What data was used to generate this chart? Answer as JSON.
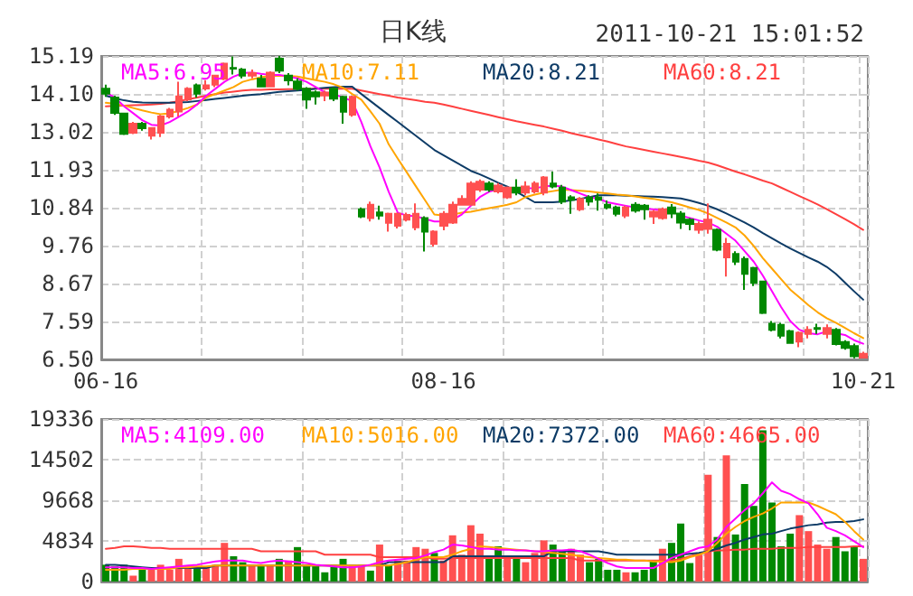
{
  "chart_data": [
    {
      "type": "candlestick",
      "title": "日K线",
      "annotations": [
        "2011-10-21 15:01:52"
      ],
      "categories": [
        "06-16",
        null,
        null,
        null,
        null,
        null,
        null,
        null,
        null,
        null,
        null,
        null,
        null,
        null,
        null,
        null,
        null,
        null,
        null,
        null,
        null,
        null,
        null,
        null,
        null,
        null,
        null,
        null,
        null,
        null,
        null,
        null,
        null,
        null,
        null,
        null,
        null,
        "08-16",
        null,
        null,
        null,
        null,
        null,
        null,
        null,
        null,
        null,
        null,
        null,
        null,
        null,
        null,
        null,
        null,
        null,
        null,
        null,
        null,
        null,
        null,
        null,
        null,
        null,
        null,
        null,
        null,
        null,
        null,
        null,
        null,
        null,
        null,
        null,
        null,
        null,
        null,
        null,
        null,
        null,
        null,
        null,
        null,
        null,
        "10-21"
      ],
      "ohlc": [
        [
          14.25,
          14.37,
          14.02,
          14.11
        ],
        [
          14.0,
          14.05,
          13.5,
          13.56
        ],
        [
          13.54,
          13.56,
          12.93,
          12.96
        ],
        [
          12.99,
          13.3,
          12.95,
          13.25
        ],
        [
          13.25,
          13.3,
          13.05,
          13.12
        ],
        [
          12.91,
          13.15,
          12.8,
          13.13
        ],
        [
          12.99,
          13.5,
          12.87,
          13.46
        ],
        [
          13.46,
          13.7,
          13.4,
          13.65
        ],
        [
          13.6,
          14.45,
          13.46,
          14.03
        ],
        [
          13.94,
          14.3,
          13.9,
          14.25
        ],
        [
          14.35,
          14.4,
          14.0,
          14.11
        ],
        [
          14.26,
          14.5,
          14.2,
          14.35
        ],
        [
          14.37,
          14.65,
          14.3,
          14.63
        ],
        [
          14.54,
          15.0,
          14.5,
          14.97
        ],
        [
          14.85,
          15.18,
          14.66,
          14.83
        ],
        [
          14.8,
          14.85,
          14.55,
          14.63
        ],
        [
          14.63,
          14.8,
          14.55,
          14.7
        ],
        [
          14.54,
          14.65,
          14.3,
          14.32
        ],
        [
          14.32,
          14.75,
          14.3,
          14.71
        ],
        [
          15.11,
          15.19,
          14.7,
          14.77
        ],
        [
          14.63,
          14.7,
          14.35,
          14.49
        ],
        [
          14.46,
          14.55,
          14.2,
          14.25
        ],
        [
          14.25,
          14.3,
          13.68,
          13.94
        ],
        [
          14.15,
          14.2,
          13.8,
          14.03
        ],
        [
          14.06,
          14.2,
          13.9,
          14.14
        ],
        [
          14.25,
          14.3,
          13.9,
          13.97
        ],
        [
          14.02,
          14.05,
          13.25,
          13.59
        ],
        [
          13.51,
          14.05,
          13.45,
          14.02
        ],
        [
          10.8,
          10.85,
          10.55,
          10.59
        ],
        [
          10.55,
          11.02,
          10.45,
          10.93
        ],
        [
          10.71,
          10.9,
          10.5,
          10.62
        ],
        [
          10.41,
          10.7,
          10.16,
          10.67
        ],
        [
          10.33,
          10.7,
          10.25,
          10.67
        ],
        [
          10.5,
          10.7,
          10.45,
          10.64
        ],
        [
          10.28,
          10.97,
          10.2,
          10.67
        ],
        [
          10.55,
          10.6,
          9.59,
          10.16
        ],
        [
          9.81,
          10.2,
          9.73,
          10.16
        ],
        [
          10.33,
          10.75,
          10.2,
          10.67
        ],
        [
          10.42,
          11.02,
          10.38,
          10.93
        ],
        [
          10.93,
          11.2,
          10.9,
          11.1
        ],
        [
          10.93,
          11.6,
          10.9,
          11.54
        ],
        [
          11.36,
          11.65,
          11.3,
          11.59
        ],
        [
          11.54,
          11.6,
          11.3,
          11.36
        ],
        [
          11.31,
          11.55,
          11.25,
          11.48
        ],
        [
          11.14,
          11.45,
          11.1,
          11.42
        ],
        [
          11.42,
          11.66,
          11.2,
          11.28
        ],
        [
          11.28,
          11.6,
          11.2,
          11.45
        ],
        [
          11.31,
          11.6,
          11.25,
          11.54
        ],
        [
          11.28,
          11.75,
          11.2,
          11.71
        ],
        [
          11.54,
          11.88,
          11.4,
          11.45
        ],
        [
          11.42,
          11.5,
          10.95,
          11.02
        ],
        [
          11.14,
          11.2,
          10.67,
          11.07
        ],
        [
          10.8,
          11.15,
          10.75,
          11.1
        ],
        [
          11.14,
          11.2,
          10.9,
          11.02
        ],
        [
          11.14,
          11.25,
          10.76,
          11.07
        ],
        [
          10.93,
          11.05,
          10.8,
          10.85
        ],
        [
          10.85,
          10.9,
          10.6,
          10.67
        ],
        [
          10.62,
          10.9,
          10.55,
          10.85
        ],
        [
          10.93,
          11.0,
          10.7,
          10.76
        ],
        [
          10.9,
          10.95,
          10.5,
          10.8
        ],
        [
          10.59,
          10.78,
          10.38,
          10.73
        ],
        [
          10.55,
          10.85,
          10.5,
          10.8
        ],
        [
          10.85,
          10.95,
          10.55,
          10.68
        ],
        [
          10.68,
          10.75,
          10.24,
          10.42
        ],
        [
          10.5,
          10.55,
          10.2,
          10.38
        ],
        [
          10.21,
          10.45,
          10.1,
          10.38
        ],
        [
          10.24,
          10.97,
          10.1,
          10.5
        ],
        [
          10.21,
          10.25,
          9.6,
          9.64
        ],
        [
          9.42,
          9.98,
          8.87,
          9.81
        ],
        [
          9.52,
          9.6,
          9.2,
          9.3
        ],
        [
          9.38,
          9.45,
          8.49,
          8.95
        ],
        [
          9.12,
          9.15,
          8.6,
          8.69
        ],
        [
          8.73,
          8.75,
          7.8,
          7.83
        ],
        [
          7.52,
          7.6,
          7.3,
          7.35
        ],
        [
          7.49,
          7.55,
          7.1,
          7.18
        ],
        [
          7.31,
          7.35,
          6.95,
          6.97
        ],
        [
          7.01,
          7.3,
          6.85,
          7.26
        ],
        [
          7.23,
          7.45,
          7.1,
          7.35
        ],
        [
          7.4,
          7.52,
          7.23,
          7.37
        ],
        [
          7.23,
          7.5,
          7.1,
          7.4
        ],
        [
          7.35,
          7.4,
          6.9,
          6.94
        ],
        [
          7.0,
          7.05,
          6.78,
          6.83
        ],
        [
          6.88,
          6.95,
          6.53,
          6.59
        ],
        [
          6.55,
          6.72,
          6.53,
          6.66
        ]
      ],
      "colors": [
        "#008800",
        "#008800",
        "#008800",
        "#ff5050",
        "#008800",
        "#ff5050",
        "#ff5050",
        "#ff5050",
        "#ff5050",
        "#ff5050",
        "#008800",
        "#ff5050",
        "#ff5050",
        "#ff5050",
        "#008800",
        "#008800",
        "#ff5050",
        "#008800",
        "#ff5050",
        "#008800",
        "#008800",
        "#008800",
        "#008800",
        "#008800",
        "#ff5050",
        "#008800",
        "#008800",
        "#ff5050",
        "#008800",
        "#ff5050",
        "#008800",
        "#ff5050",
        "#ff5050",
        "#ff5050",
        "#ff5050",
        "#008800",
        "#ff5050",
        "#ff5050",
        "#ff5050",
        "#ff5050",
        "#ff5050",
        "#ff5050",
        "#008800",
        "#ff5050",
        "#ff5050",
        "#008800",
        "#ff5050",
        "#ff5050",
        "#ff5050",
        "#008800",
        "#008800",
        "#008800",
        "#ff5050",
        "#008800",
        "#008800",
        "#008800",
        "#008800",
        "#ff5050",
        "#008800",
        "#008800",
        "#ff5050",
        "#ff5050",
        "#008800",
        "#008800",
        "#008800",
        "#ff5050",
        "#ff5050",
        "#008800",
        "#ff5050",
        "#008800",
        "#008800",
        "#008800",
        "#008800",
        "#008800",
        "#008800",
        "#008800",
        "#ff5050",
        "#ff5050",
        "#008800",
        "#ff5050",
        "#008800",
        "#008800",
        "#008800",
        "#ff5050"
      ],
      "series": [
        {
          "type": "line",
          "name": "MA5:6.95",
          "color": "#ff00ff",
          "values": [
            14.15,
            14.0,
            13.75,
            13.55,
            13.35,
            13.22,
            13.2,
            13.3,
            13.45,
            13.6,
            13.8,
            14.05,
            14.25,
            14.45,
            14.6,
            14.7,
            14.72,
            14.68,
            14.65,
            14.65,
            14.6,
            14.55,
            14.45,
            14.3,
            14.15,
            14.1,
            14.0,
            13.9,
            13.3,
            12.6,
            12.0,
            11.3,
            10.7,
            10.62,
            10.6,
            10.52,
            10.45,
            10.45,
            10.5,
            10.65,
            10.9,
            11.15,
            11.3,
            11.38,
            null,
            null,
            11.4,
            11.4,
            11.45,
            11.48,
            11.45,
            11.35,
            11.25,
            11.15,
            11.1,
            11.0,
            10.95,
            10.9,
            10.85,
            10.82,
            10.8,
            10.77,
            null,
            10.62,
            10.55,
            10.48,
            10.42,
            10.3,
            10.1,
            9.9,
            9.6,
            9.3,
            8.9,
            8.45,
            8.0,
            7.6,
            7.35,
            7.25,
            7.22,
            7.3,
            7.25,
            7.2,
            7.05,
            6.95
          ]
        },
        {
          "type": "line",
          "name": "MA10:7.11",
          "color": "#ffa500",
          "values": [
            13.85,
            13.82,
            13.77,
            13.7,
            13.63,
            13.57,
            13.52,
            13.55,
            13.62,
            13.7,
            13.8,
            14.0,
            14.1,
            14.2,
            14.3,
            14.45,
            14.52,
            14.58,
            14.62,
            14.63,
            14.62,
            14.6,
            14.55,
            14.5,
            14.45,
            14.38,
            14.28,
            14.1,
            13.94,
            13.6,
            13.25,
            12.66,
            12.25,
            11.85,
            11.45,
            11.05,
            10.65,
            10.62,
            10.65,
            10.7,
            10.73,
            10.78,
            10.83,
            10.88,
            10.93,
            11.0,
            11.15,
            11.22,
            11.28,
            11.32,
            11.36,
            11.35,
            11.33,
            11.31,
            11.28,
            11.25,
            11.22,
            11.2,
            11.17,
            11.13,
            11.1,
            11.05,
            11.0,
            10.93,
            10.85,
            10.78,
            10.68,
            10.55,
            10.42,
            10.28,
            10.05,
            9.75,
            9.4,
            9.1,
            8.8,
            8.5,
            8.28,
            8.05,
            7.85,
            7.68,
            7.55,
            7.4,
            7.25,
            7.11
          ]
        },
        {
          "type": "line",
          "name": "MA20:8.21",
          "color": "#0d3b66",
          "values": [
            14.05,
            13.98,
            13.92,
            13.88,
            13.86,
            13.85,
            13.85,
            13.85,
            13.86,
            13.87,
            13.9,
            13.93,
            13.96,
            13.99,
            14.02,
            14.05,
            14.08,
            14.1,
            14.13,
            14.16,
            14.18,
            14.2,
            14.22,
            14.25,
            14.28,
            14.3,
            14.31,
            14.31,
            14.1,
            13.9,
            13.7,
            13.5,
            13.3,
            13.1,
            12.9,
            12.7,
            12.5,
            12.35,
            12.2,
            12.05,
            11.9,
            11.8,
            11.68,
            11.56,
            11.45,
            11.3,
            11.15,
            11.0,
            11.0,
            11.0,
            11.02,
            11.06,
            11.1,
            11.15,
            11.2,
            11.2,
            11.2,
            11.19,
            11.18,
            11.17,
            11.16,
            11.15,
            11.13,
            11.11,
            11.05,
            10.98,
            10.9,
            10.8,
            10.68,
            10.55,
            10.42,
            10.28,
            10.12,
            9.97,
            9.82,
            9.68,
            9.55,
            9.42,
            9.3,
            9.15,
            8.95,
            8.7,
            8.45,
            8.21
          ]
        },
        {
          "type": "line",
          "name": "MA60:8.21",
          "color": "#ff4040",
          "values": [
            13.75,
            13.76,
            13.77,
            13.78,
            13.79,
            13.8,
            13.82,
            13.85,
            13.9,
            13.95,
            14.0,
            14.05,
            14.1,
            14.14,
            14.17,
            14.2,
            14.22,
            14.22,
            14.23,
            14.23,
            14.24,
            14.24,
            14.25,
            14.25,
            14.25,
            14.25,
            14.25,
            14.25,
            14.2,
            14.15,
            14.1,
            14.05,
            14.0,
            13.96,
            13.92,
            13.88,
            13.85,
            13.8,
            13.74,
            13.68,
            13.62,
            13.56,
            13.5,
            13.44,
            13.38,
            13.32,
            13.27,
            13.22,
            13.17,
            13.11,
            13.05,
            12.98,
            12.92,
            12.86,
            12.8,
            12.74,
            12.67,
            12.6,
            12.55,
            12.5,
            12.45,
            12.4,
            12.35,
            12.3,
            12.25,
            12.19,
            12.14,
            12.06,
            11.97,
            11.88,
            11.8,
            11.71,
            11.62,
            11.54,
            11.42,
            11.3,
            11.18,
            11.06,
            10.94,
            10.8,
            10.66,
            10.52,
            10.37,
            10.21
          ]
        }
      ],
      "ylim": [
        6.5,
        15.19
      ],
      "yticks": [
        15.19,
        {
          "value": 14.1,
          "label": "14.10"
        },
        13.02,
        11.93,
        10.84,
        9.76,
        8.67,
        7.59,
        {
          "value": 6.5,
          "label": "6.50"
        }
      ],
      "grid": true,
      "legend": "top"
    },
    {
      "type": "bar",
      "categories": [
        null,
        null,
        null,
        null,
        null,
        null,
        null,
        null,
        null,
        null,
        null,
        null,
        null,
        null,
        null,
        null,
        null,
        null,
        null,
        null,
        null,
        null,
        null,
        null,
        null,
        null,
        null,
        null,
        null,
        null,
        null,
        null,
        null,
        null,
        null,
        null,
        null,
        null,
        null,
        null,
        null,
        null,
        null,
        null,
        null,
        null,
        null,
        null,
        null,
        null,
        null,
        null,
        null,
        null,
        null,
        null,
        null,
        null,
        null,
        null,
        null,
        null,
        null,
        null,
        null,
        null,
        null,
        null,
        null,
        null,
        null,
        null,
        null,
        null,
        null,
        null,
        null,
        null,
        null,
        null,
        null,
        null,
        null,
        null
      ],
      "values": [
        2000,
        1800,
        2000,
        700,
        1400,
        1600,
        2000,
        1400,
        2700,
        1800,
        1600,
        1600,
        2000,
        4600,
        3000,
        2300,
        2000,
        2000,
        2000,
        2700,
        2500,
        4100,
        2000,
        2000,
        1100,
        2000,
        2700,
        2000,
        2000,
        1300,
        4400,
        2000,
        2500,
        2500,
        4100,
        3900,
        3400,
        2500,
        5500,
        3200,
        6700,
        5700,
        2700,
        4200,
        3000,
        2700,
        2300,
        3400,
        4900,
        4400,
        3600,
        3900,
        3200,
        2300,
        2700,
        1400,
        1400,
        1100,
        1100,
        1400,
        2500,
        3900,
        4600,
        6900,
        2200,
        3200,
        12700,
        5300,
        15000,
        5600,
        11600,
        9000,
        18000,
        9400,
        4200,
        5700,
        7900,
        6000,
        4400,
        3900,
        5300,
        3600,
        4200,
        2700
      ],
      "colors": [
        "#008800",
        "#008800",
        "#008800",
        "#ff5050",
        "#008800",
        "#ff5050",
        "#ff5050",
        "#ff5050",
        "#ff5050",
        "#ff5050",
        "#008800",
        "#ff5050",
        "#ff5050",
        "#ff5050",
        "#008800",
        "#008800",
        "#ff5050",
        "#008800",
        "#ff5050",
        "#008800",
        "#ff5050",
        "#008800",
        "#008800",
        "#008800",
        "#008800",
        "#008800",
        "#008800",
        "#ff5050",
        "#ff5050",
        "#008800",
        "#ff5050",
        "#008800",
        "#ff5050",
        "#ff5050",
        "#ff5050",
        "#ff5050",
        "#008800",
        "#ff5050",
        "#ff5050",
        "#ff5050",
        "#ff5050",
        "#ff5050",
        "#008800",
        "#008800",
        "#ff5050",
        "#008800",
        "#ff5050",
        "#ff5050",
        "#ff5050",
        "#008800",
        "#008800",
        "#ff5050",
        "#ff5050",
        "#008800",
        "#008800",
        "#008800",
        "#008800",
        "#ff5050",
        "#008800",
        "#008800",
        "#008800",
        "#ff5050",
        "#008800",
        "#008800",
        "#008800",
        "#ff5050",
        "#ff5050",
        "#008800",
        "#ff5050",
        "#008800",
        "#008800",
        "#008800",
        "#008800",
        "#008800",
        "#008800",
        "#008800",
        "#ff5050",
        "#ff5050",
        "#ff5050",
        "#ff5050",
        "#008800",
        "#008800",
        "#008800",
        "#ff5050"
      ],
      "series": [
        {
          "type": "line",
          "name": "MA5:4109.00",
          "color": "#ff00ff",
          "values": [
            1700,
            1700,
            1700,
            1600,
            1600,
            1500,
            1600,
            1700,
            1800,
            1900,
            2000,
            2200,
            2400,
            2500,
            2500,
            2500,
            2300,
            2200,
            2400,
            2500,
            2400,
            2300,
            2200,
            2000,
            1900,
            1800,
            1700,
            1700,
            1800,
            2000,
            2300,
            2500,
            2600,
            2700,
            2800,
            3100,
            3500,
            3800,
            4400,
            4300,
            4100,
            3900,
            3900,
            3800,
            3800,
            3700,
            3700,
            3600,
            3600,
            3700,
            3700,
            3800,
            3600,
            3200,
            2700,
            2200,
            1800,
            1600,
            1600,
            1600,
            1600,
            2200,
            2800,
            3200,
            3600,
            4000,
            4200,
            5000,
            6500,
            7500,
            8500,
            9300,
            10500,
            11800,
            10800,
            10400,
            9800,
            9300,
            8000,
            6400,
            6000,
            5500,
            4800,
            4100
          ]
        },
        {
          "type": "line",
          "name": "MA10:5016.00",
          "color": "#ffa500",
          "values": [
            1400,
            1400,
            1400,
            1500,
            1500,
            1500,
            1500,
            1500,
            1700,
            1700,
            1800,
            1800,
            1900,
            1900,
            1900,
            1900,
            1900,
            1900,
            1900,
            1900,
            1900,
            1900,
            1900,
            1900,
            1900,
            1900,
            1900,
            1900,
            1900,
            1900,
            1900,
            1900,
            2100,
            2300,
            2600,
            2900,
            2900,
            2900,
            3200,
            3600,
            3900,
            4200,
            4100,
            4000,
            3900,
            3800,
            3700,
            3600,
            3500,
            3400,
            3300,
            3200,
            3000,
            2900,
            2800,
            2700,
            2600,
            2600,
            2500,
            2500,
            2400,
            2400,
            2300,
            2500,
            2900,
            3200,
            3600,
            4600,
            5700,
            6500,
            7200,
            7700,
            8100,
            8700,
            9400,
            9400,
            9400,
            9400,
            9000,
            8500,
            8000,
            7100,
            6000,
            5000
          ]
        },
        {
          "type": "line",
          "name": "MA20:7372.00",
          "color": "#0d3b66",
          "values": [
            2000,
            2000,
            1900,
            1800,
            1700,
            1600,
            1600,
            1600,
            1600,
            1600,
            1600,
            1600,
            1900,
            1900,
            1900,
            1900,
            1900,
            1900,
            1900,
            1900,
            1900,
            1900,
            1900,
            1900,
            1900,
            1900,
            1900,
            1900,
            1900,
            1900,
            1900,
            2300,
            2300,
            2300,
            2300,
            2300,
            2300,
            2300,
            3000,
            3000,
            3000,
            3000,
            3000,
            3000,
            3000,
            3000,
            3000,
            3000,
            3000,
            3600,
            3600,
            3600,
            3600,
            3600,
            3600,
            3400,
            3200,
            3200,
            3200,
            3200,
            3200,
            3200,
            3200,
            3200,
            3300,
            3400,
            3600,
            3900,
            4300,
            4600,
            5000,
            5300,
            5600,
            5700,
            6000,
            6300,
            6500,
            6700,
            6800,
            7000,
            7100,
            7100,
            7200,
            7400
          ]
        },
        {
          "type": "line",
          "name": "MA60:4665.00",
          "color": "#ff4040",
          "values": [
            3900,
            4000,
            4200,
            4200,
            4100,
            4000,
            4000,
            3900,
            3900,
            3900,
            3900,
            3900,
            3900,
            3900,
            3900,
            3900,
            3900,
            3600,
            3600,
            3600,
            3600,
            3600,
            3600,
            3600,
            3200,
            3200,
            3200,
            3200,
            3200,
            3200,
            2900,
            2900,
            2900,
            2900,
            2900,
            2900,
            2700,
            2700,
            2800,
            2800,
            2800,
            2800,
            2800,
            2800,
            2800,
            2800,
            2800,
            2800,
            2800,
            2800,
            2800,
            2800,
            2500,
            2500,
            2500,
            2500,
            2500,
            2500,
            2500,
            2500,
            2500,
            2500,
            2500,
            2700,
            3000,
            3300,
            3600,
            3700,
            3700,
            3800,
            3800,
            3900,
            3900,
            3900,
            4000,
            4000,
            4000,
            4100,
            4100,
            4100,
            4100,
            4100,
            4200,
            4200
          ]
        }
      ],
      "ylim": [
        0,
        19336
      ],
      "yticks": [
        0,
        4834,
        9668,
        14502,
        19336
      ],
      "grid": true,
      "legend": "top",
      "tick_labels": "y"
    }
  ]
}
